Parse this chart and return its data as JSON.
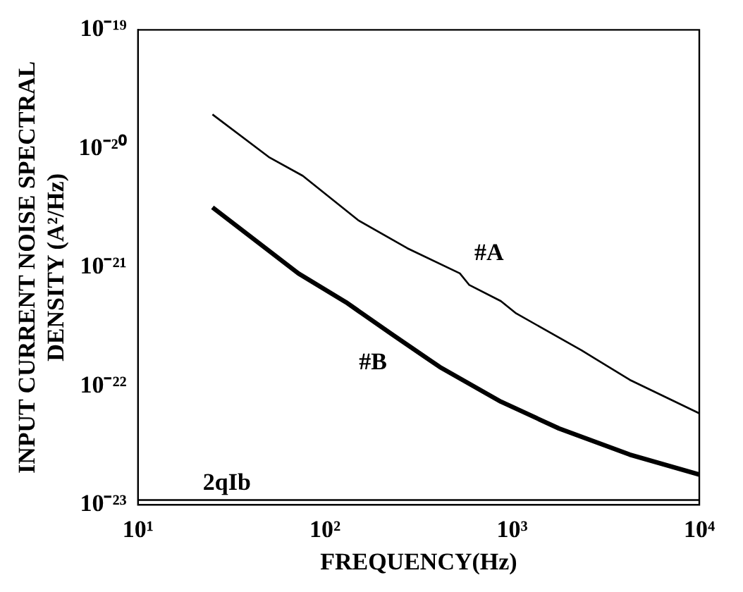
{
  "chart_data": {
    "type": "line",
    "xlabel": "FREQUENCY(Hz)",
    "ylabel": "INPUT CURRENT NOISE SPECTRAL\nDENSITY (A²/Hz)",
    "log": "xy",
    "grid": false,
    "legend": false,
    "xlim": [
      10,
      10000
    ],
    "xticks": [
      {
        "value": 10,
        "label": "10¹"
      },
      {
        "value": 100,
        "label": "10²"
      },
      {
        "value": 1000,
        "label": "10³"
      },
      {
        "value": 10000,
        "label": "10⁴"
      }
    ],
    "ylim": [
      1e-23,
      1e-19
    ],
    "yticks": [
      {
        "value": 1e-23,
        "label": "10⁻²³"
      },
      {
        "value": 1e-22,
        "label": "10⁻²²"
      },
      {
        "value": 1e-21,
        "label": "10⁻²¹"
      },
      {
        "value": 1e-20,
        "label": "10⁻²⁰"
      },
      {
        "value": 1e-19,
        "label": "10⁻¹⁹"
      }
    ],
    "series": [
      {
        "name": "#A",
        "color": "#000000",
        "x": [
          25,
          50,
          76,
          150,
          275,
          525,
          590,
          870,
          1050,
          2350,
          4250,
          10000
        ],
        "values": [
          1.94e-20,
          8.5e-21,
          5.9e-21,
          2.5e-21,
          1.45e-21,
          8.9e-22,
          7.1e-22,
          5.2e-22,
          4.1e-22,
          2e-22,
          1.13e-22,
          5.9e-23
        ]
      },
      {
        "name": "#B",
        "color": "#000000",
        "x": [
          25,
          72,
          129,
          230,
          410,
          870,
          1780,
          4250,
          10000
        ],
        "values": [
          3.2e-21,
          8.9e-22,
          5.1e-22,
          2.7e-22,
          1.45e-22,
          7.4e-23,
          4.4e-23,
          2.65e-23,
          1.8e-23
        ]
      }
    ],
    "ref_lines": [
      {
        "axis": "y",
        "value": 1.1e-23,
        "label": "2qIb"
      }
    ]
  }
}
